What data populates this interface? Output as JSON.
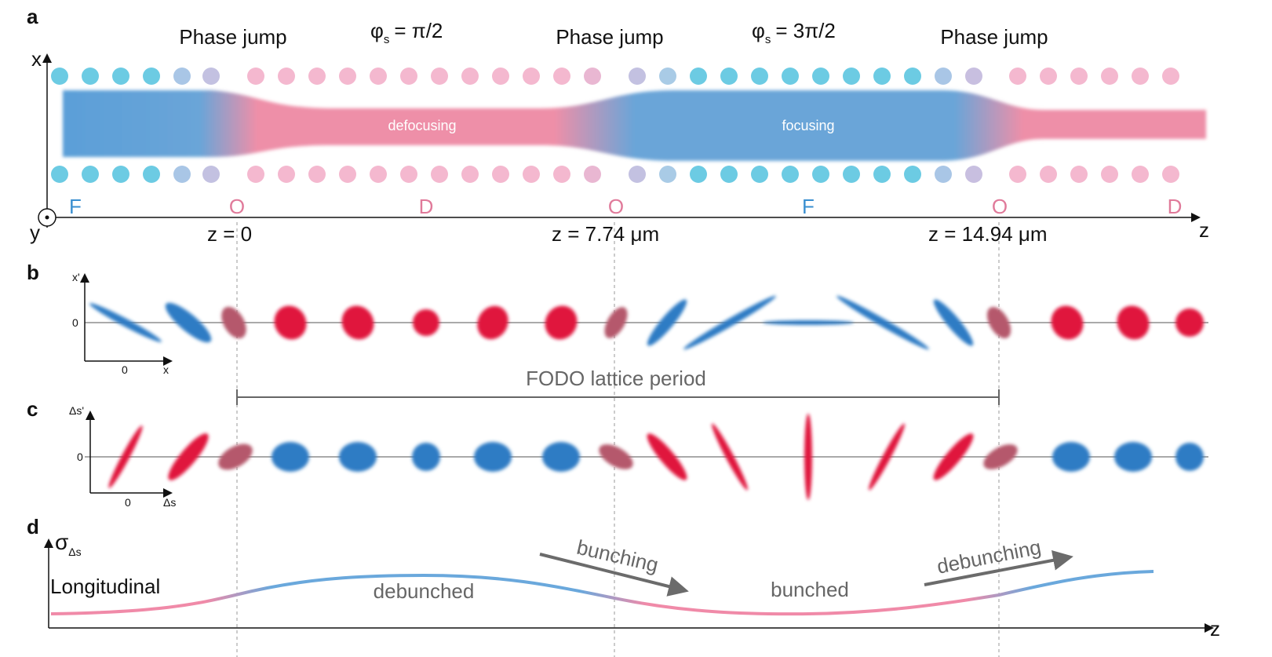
{
  "a": {
    "label": "a",
    "phase_jumps": [
      "Phase jump",
      "Phase jump",
      "Phase jump"
    ],
    "phase_1": {
      "symbol": "φ",
      "sub": "s",
      "rest": "= π/2"
    },
    "phase_2": {
      "symbol": "φ",
      "sub": "s",
      "rest": "= 3π/2"
    },
    "defocusing": "defocusing",
    "focusing": "focusing",
    "axis_x": "x",
    "axis_y": "y",
    "axis_z": "z",
    "lattice": [
      "F",
      "O",
      "D",
      "O",
      "F",
      "O",
      "D"
    ],
    "positions": [
      "z = 0",
      "z = 7.74 μm",
      "z = 14.94 μm"
    ]
  },
  "b": {
    "label": "b",
    "axis_y": "x'",
    "y_zero": "0",
    "x_zero": "0",
    "axis_x": "x",
    "period": "FODO lattice period"
  },
  "c": {
    "label": "c",
    "axis_y": "Δs'",
    "y_zero": "0",
    "x_zero": "0",
    "axis_x": "Δs"
  },
  "d": {
    "label": "d",
    "axis_y": {
      "symbol": "σ",
      "sub": "Δs"
    },
    "title": "Longitudinal",
    "labels": [
      "debunched",
      "bunching",
      "bunched",
      "debunching"
    ],
    "axis_z": "z"
  }
}
